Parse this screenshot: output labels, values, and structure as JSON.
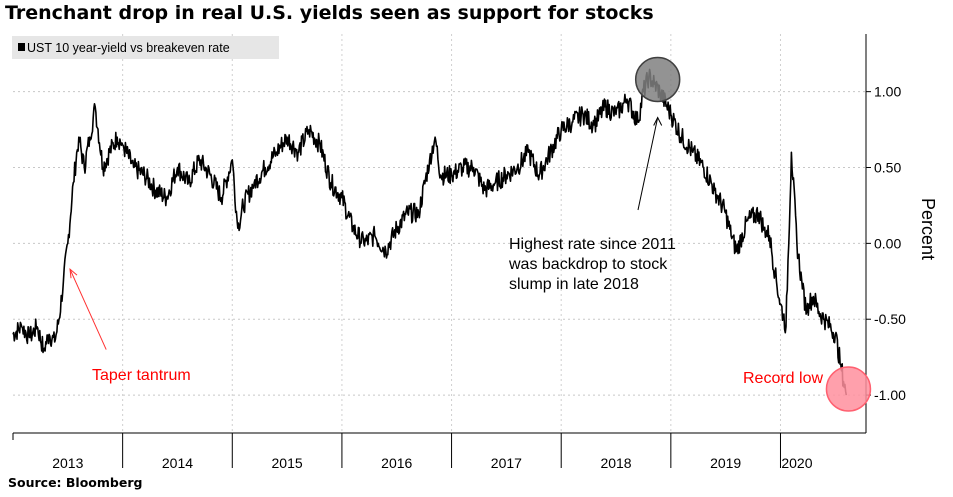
{
  "title": "Trenchant drop in real U.S. yields seen as support for stocks",
  "source": "Source: Bloomberg",
  "chart_data": {
    "type": "line",
    "legend": {
      "label": "UST 10 year-yield vs breakeven rate",
      "placement": "top-left"
    },
    "ylabel": "Percent",
    "ylim": [
      -1.25,
      1.38
    ],
    "y_ticks": [
      1.0,
      0.5,
      0.0,
      -0.5,
      -1.0
    ],
    "y_tick_labels": [
      "1.00",
      "0.50",
      "0.00",
      "-0.50",
      "-1.00"
    ],
    "xlim": [
      2013.0,
      2020.78
    ],
    "x_tick_labels": [
      "2013",
      "2014",
      "2015",
      "2016",
      "2017",
      "2018",
      "2019",
      "2020"
    ],
    "x_label_positions": [
      2013.5,
      2014.5,
      2015.5,
      2016.5,
      2017.5,
      2018.5,
      2019.5,
      2020.15
    ],
    "x_boundaries": [
      2014,
      2015,
      2016,
      2017,
      2018,
      2019,
      2020
    ],
    "grid": true,
    "line_color": "#000000",
    "series": [
      {
        "x": [
          2013.0,
          2013.08,
          2013.15,
          2013.22,
          2013.28,
          2013.33,
          2013.38,
          2013.42,
          2013.46,
          2013.5,
          2013.55,
          2013.6,
          2013.65,
          2013.7,
          2013.75,
          2013.82,
          2013.88,
          2013.95,
          2014.0,
          2014.1,
          2014.2,
          2014.3,
          2014.4,
          2014.5,
          2014.6,
          2014.7,
          2014.8,
          2014.9,
          2015.0,
          2015.05,
          2015.1,
          2015.2,
          2015.3,
          2015.4,
          2015.5,
          2015.6,
          2015.7,
          2015.8,
          2015.9,
          2016.0,
          2016.1,
          2016.2,
          2016.3,
          2016.4,
          2016.5,
          2016.6,
          2016.7,
          2016.8,
          2016.85,
          2016.9,
          2017.0,
          2017.1,
          2017.2,
          2017.3,
          2017.4,
          2017.5,
          2017.6,
          2017.7,
          2017.8,
          2017.9,
          2018.0,
          2018.1,
          2018.2,
          2018.3,
          2018.4,
          2018.5,
          2018.6,
          2018.7,
          2018.75,
          2018.8,
          2018.85,
          2018.9,
          2019.0,
          2019.1,
          2019.2,
          2019.3,
          2019.4,
          2019.5,
          2019.55,
          2019.6,
          2019.7,
          2019.8,
          2019.85,
          2019.9,
          2019.95,
          2020.0,
          2020.05,
          2020.1,
          2020.15,
          2020.2,
          2020.24,
          2020.26,
          2020.3,
          2020.35,
          2020.4,
          2020.45,
          2020.5,
          2020.55,
          2020.6
        ],
        "y": [
          -0.6,
          -0.55,
          -0.62,
          -0.55,
          -0.7,
          -0.6,
          -0.65,
          -0.5,
          -0.25,
          0.0,
          0.4,
          0.7,
          0.5,
          0.7,
          0.9,
          0.5,
          0.6,
          0.7,
          0.65,
          0.5,
          0.45,
          0.35,
          0.3,
          0.5,
          0.4,
          0.55,
          0.45,
          0.3,
          0.55,
          0.1,
          0.25,
          0.4,
          0.5,
          0.6,
          0.7,
          0.6,
          0.75,
          0.65,
          0.4,
          0.3,
          0.1,
          0.0,
          0.05,
          -0.05,
          0.1,
          0.2,
          0.2,
          0.55,
          0.7,
          0.45,
          0.45,
          0.5,
          0.5,
          0.35,
          0.4,
          0.45,
          0.5,
          0.6,
          0.45,
          0.6,
          0.75,
          0.8,
          0.85,
          0.78,
          0.9,
          0.85,
          0.95,
          0.8,
          1.0,
          1.1,
          1.05,
          1.0,
          0.85,
          0.7,
          0.6,
          0.5,
          0.35,
          0.2,
          0.05,
          -0.05,
          0.15,
          0.2,
          0.1,
          0.05,
          -0.2,
          -0.4,
          -0.55,
          0.6,
          0.0,
          -0.3,
          -0.45,
          -0.4,
          -0.35,
          -0.45,
          -0.5,
          -0.55,
          -0.6,
          -0.8,
          -1.0
        ]
      }
    ],
    "annotations": [
      {
        "text": "Taper tantrum",
        "color": "#ff0000"
      },
      {
        "text_lines": [
          "Highest rate since 2011",
          "was backdrop to stock",
          "slump in late 2018"
        ],
        "color": "#000000"
      },
      {
        "text": "Record low",
        "color": "#ff0000"
      }
    ],
    "highlight_circles": [
      {
        "x": 2018.88,
        "y": 1.08,
        "fill": "#808080",
        "stroke": "#404040"
      },
      {
        "x": 2020.62,
        "y": -0.96,
        "fill": "#ff8f9e",
        "stroke": "#ff6070"
      }
    ]
  }
}
